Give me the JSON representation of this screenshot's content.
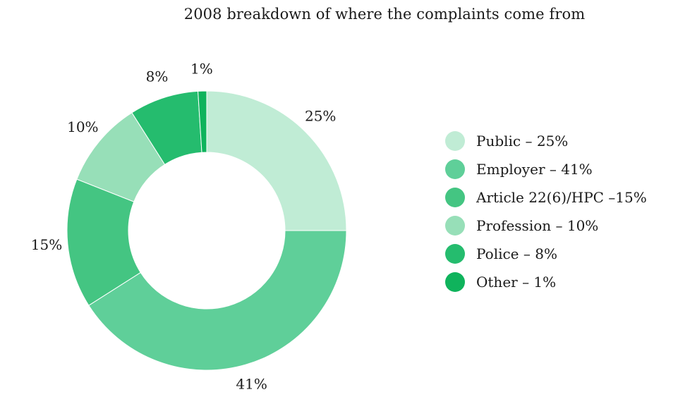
{
  "chart_data": {
    "type": "pie",
    "title": "2008 breakdown of where the complaints come from",
    "slices": [
      {
        "name": "Public",
        "value": 25,
        "data_label": "25%",
        "legend_label": "Public – 25%",
        "color": "#c0ecd5"
      },
      {
        "name": "Employer",
        "value": 41,
        "data_label": "41%",
        "legend_label": "Employer – 41%",
        "color": "#5fcf99"
      },
      {
        "name": "Article 22(6)/HPC",
        "value": 15,
        "data_label": "15%",
        "legend_label": "Article 22(6)/HPC –15%",
        "color": "#44c582"
      },
      {
        "name": "Profession",
        "value": 10,
        "data_label": "10%",
        "legend_label": "Profession – 10%",
        "color": "#97dfb8"
      },
      {
        "name": "Police",
        "value": 8,
        "data_label": "8%",
        "legend_label": "Police – 8%",
        "color": "#25bc6e"
      },
      {
        "name": "Other",
        "value": 1,
        "data_label": "1%",
        "legend_label": "Other – 1%",
        "color": "#0fb35c"
      }
    ],
    "donut": true,
    "legend_position": "right"
  }
}
